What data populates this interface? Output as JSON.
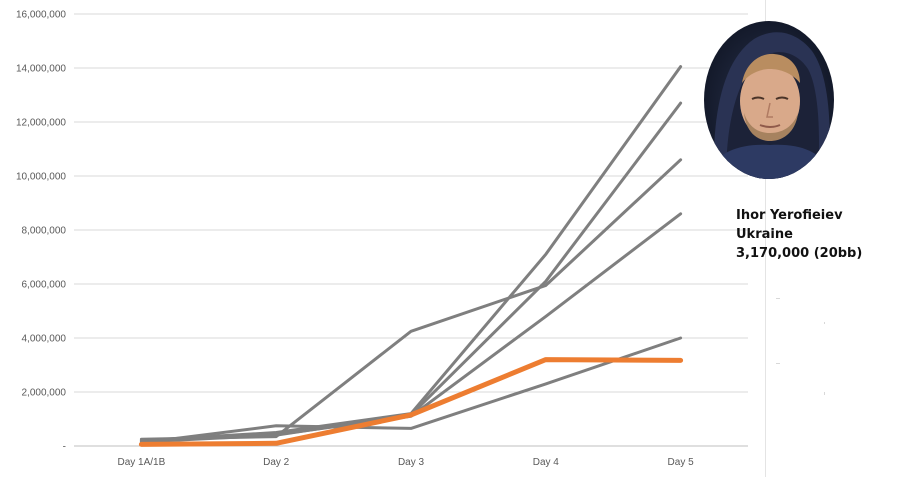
{
  "chart_data": {
    "type": "line",
    "title": "",
    "xlabel": "",
    "ylabel": "",
    "categories": [
      "Day 1A/1B",
      "Day 2",
      "Day 3",
      "Day 4",
      "Day 5"
    ],
    "yticks": [
      0,
      2000000,
      4000000,
      6000000,
      8000000,
      10000000,
      12000000,
      14000000,
      16000000
    ],
    "ytick_labels": [
      "-",
      "2,000,000",
      "4,000,000",
      "6,000,000",
      "8,000,000",
      "10,000,000",
      "12,000,000",
      "14,000,000",
      "16,000,000"
    ],
    "ylim": [
      0,
      16000000
    ],
    "grid": true,
    "legend": "none",
    "series": [
      {
        "values": [
          200000,
          500000,
          1200000,
          7100000,
          14050000
        ],
        "color": "#7f7f7f",
        "highlight": false
      },
      {
        "values": [
          150000,
          400000,
          1150000,
          6100000,
          12700000
        ],
        "color": "#7f7f7f",
        "highlight": false
      },
      {
        "values": [
          250000,
          350000,
          4250000,
          5950000,
          10600000
        ],
        "color": "#7f7f7f",
        "highlight": false
      },
      {
        "values": [
          180000,
          420000,
          1100000,
          4800000,
          8600000
        ],
        "color": "#7f7f7f",
        "highlight": false
      },
      {
        "values": [
          120000,
          750000,
          650000,
          2300000,
          4000000
        ],
        "color": "#7f7f7f",
        "highlight": false
      },
      {
        "values": [
          60000,
          100000,
          1150000,
          3200000,
          3170000
        ],
        "color": "#ed7d31",
        "highlight": true
      }
    ]
  },
  "player": {
    "name": "Ihor Yerofieiev",
    "country": "Ukraine",
    "stack": "3,170,000 (20bb)"
  }
}
